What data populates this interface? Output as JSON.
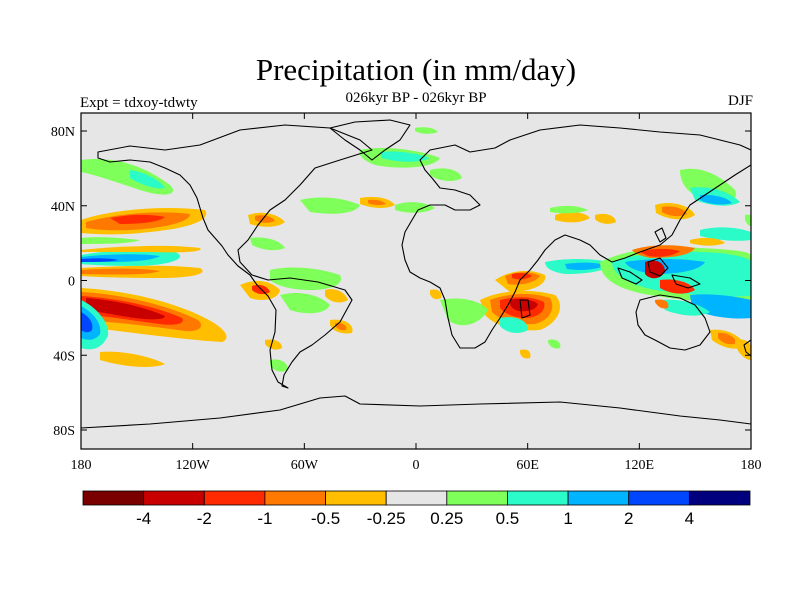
{
  "title": "Precipitation (in mm/day)",
  "subtitle": "026kyr BP - 026kyr BP",
  "left_label": "Expt = tdxoy-tdwty",
  "right_label": "DJF",
  "map": {
    "projection": "cylindrical-equidistant",
    "background_color": "#e6e6e6",
    "lat_ticks": [
      "80N",
      "40N",
      "0",
      "40S",
      "80S"
    ],
    "lon_ticks": [
      "180",
      "120W",
      "60W",
      "0",
      "60E",
      "120E",
      "180"
    ]
  },
  "colorbar": {
    "colors": [
      "#7a0000",
      "#c80000",
      "#ff2a00",
      "#ff7800",
      "#ffbf00",
      "#e6e6e6",
      "#7fff5a",
      "#2afbc8",
      "#00b4ff",
      "#0046ff",
      "#00007f"
    ],
    "labels": [
      "-4",
      "-2",
      "-1",
      "-0.5",
      "-0.25",
      "0.25",
      "0.5",
      "1",
      "2",
      "4"
    ]
  }
}
